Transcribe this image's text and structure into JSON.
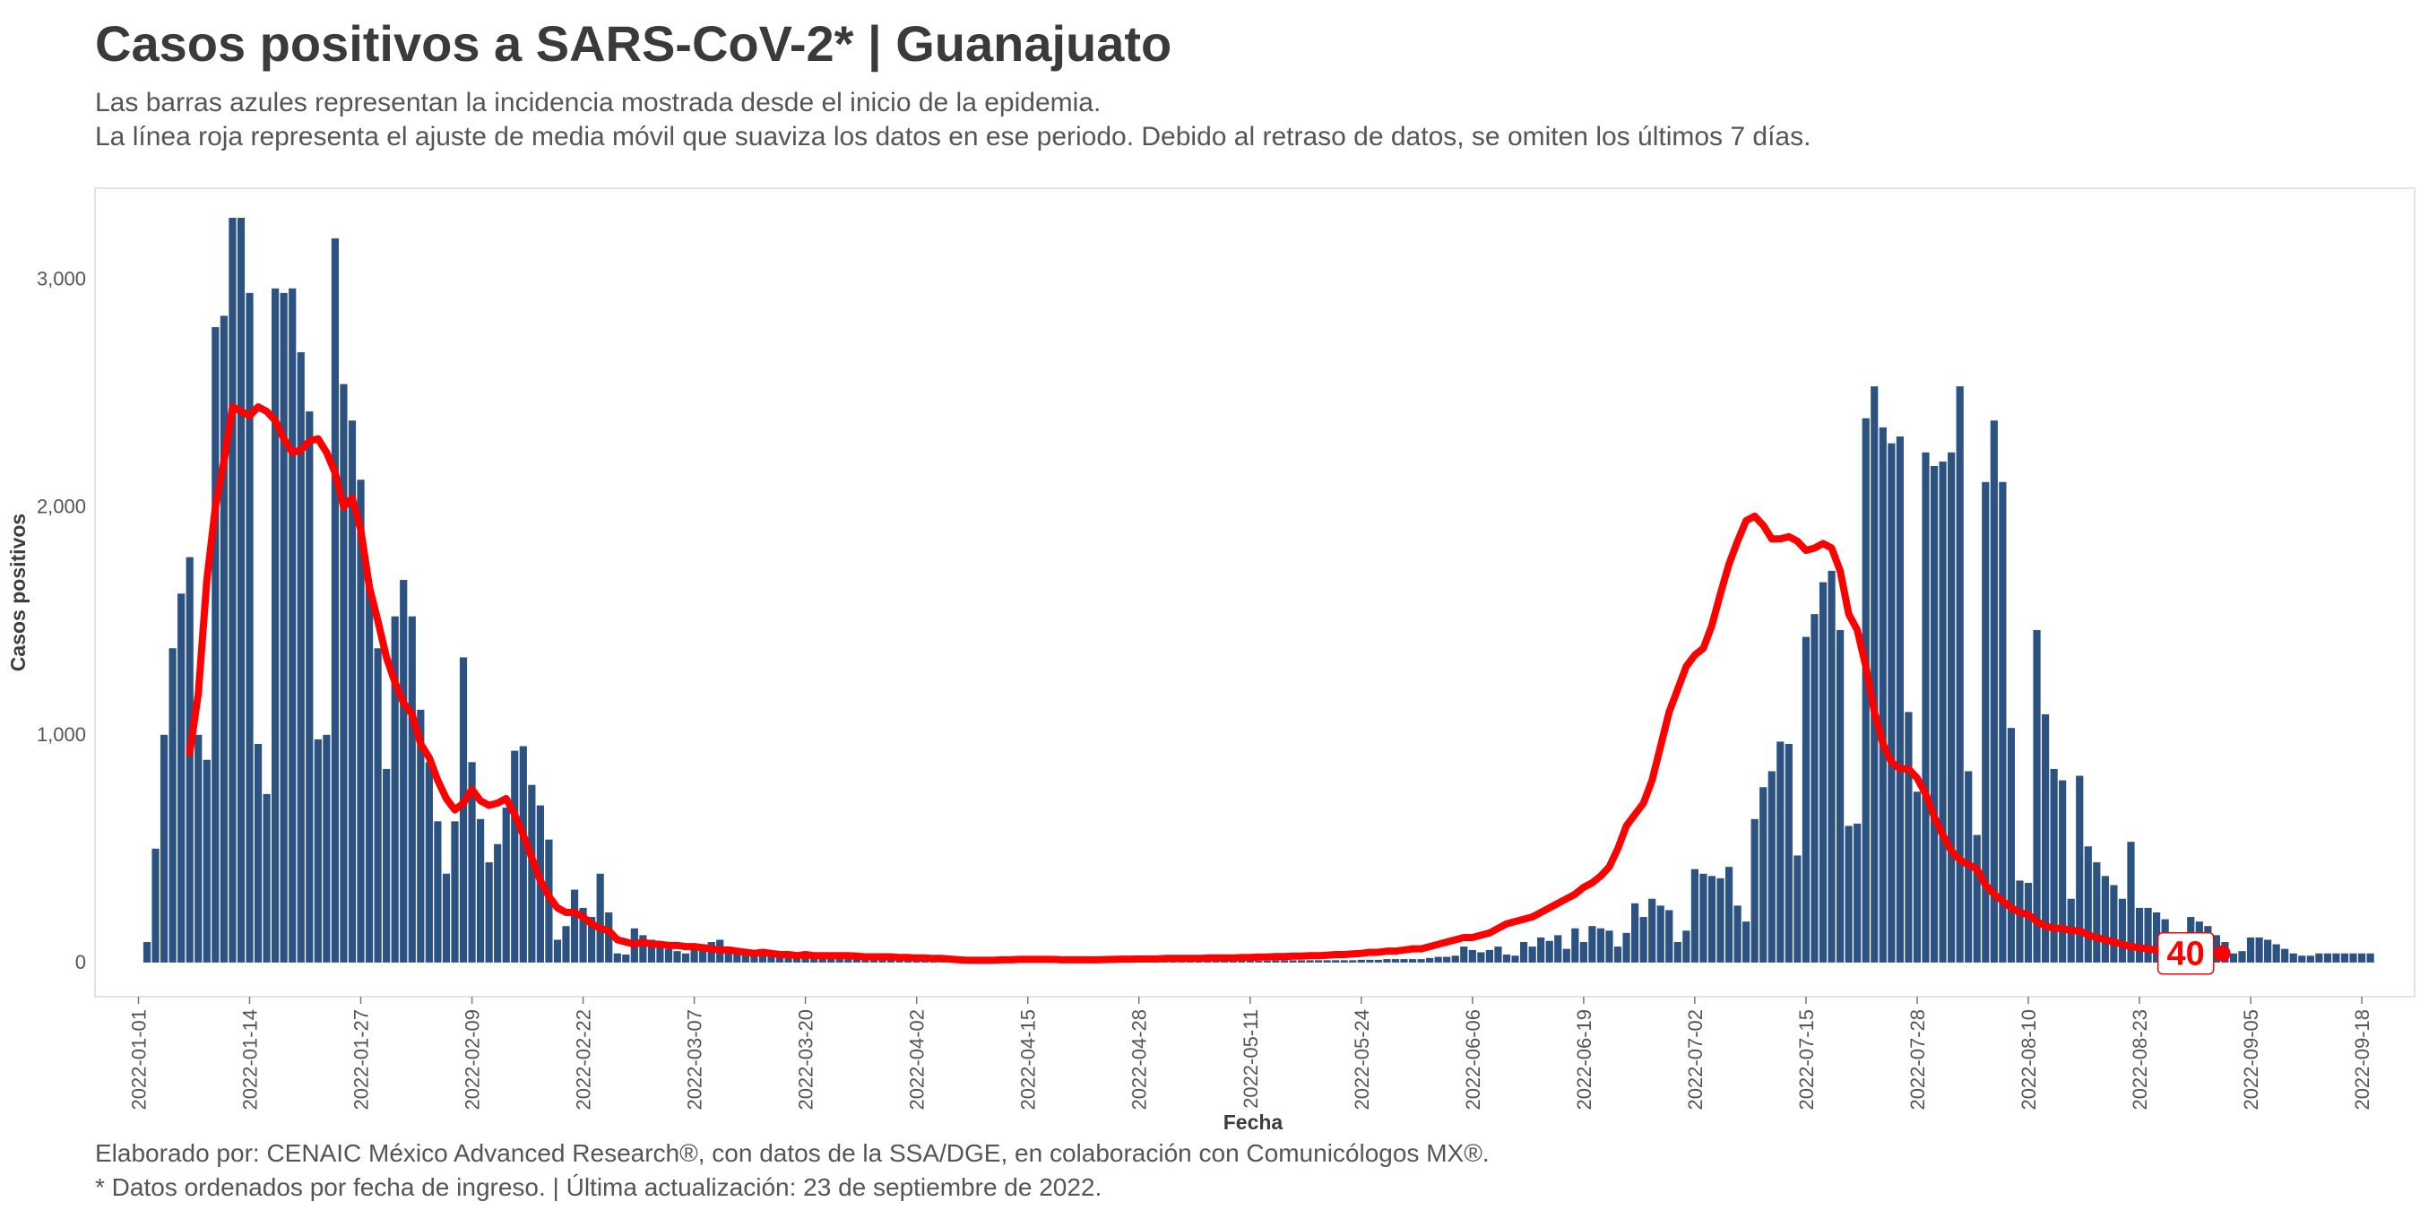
{
  "header": {
    "title": "Casos positivos a SARS-CoV-2* | Guanajuato",
    "subtitle_line1": "Las barras azules representan la incidencia mostrada desde el inicio de la epidemia.",
    "subtitle_line2": "La línea roja representa el ajuste de media móvil que suaviza los datos en ese periodo. Debido al retraso de datos, se omiten los últimos 7 días."
  },
  "footer": {
    "line1": "Elaborado por: CENAIC México Advanced Research®, con datos de la SSA/DGE, en colaboración con Comunicólogos MX®.",
    "line2": "* Datos ordenados por fecha de ingreso. | Última actualización: 23 de septiembre de 2022."
  },
  "colors": {
    "bars": "#2c5282",
    "line": "#ff0000",
    "panel_border": "#e3e3e3"
  },
  "chart_data": {
    "type": "bar",
    "start_date": "2022-01-02",
    "end_date": "2022-09-16",
    "xlabel": "Fecha",
    "ylabel": "Casos positivos",
    "ylim": [
      -150,
      3400
    ],
    "yticks": [
      0,
      1000,
      2000,
      3000
    ],
    "ytick_labels": [
      "0",
      "1,000",
      "2,000",
      "3,000"
    ],
    "xticks": [
      "2022-01-01",
      "2022-01-14",
      "2022-01-27",
      "2022-02-09",
      "2022-02-22",
      "2022-03-07",
      "2022-03-20",
      "2022-04-02",
      "2022-04-15",
      "2022-04-28",
      "2022-05-11",
      "2022-05-24",
      "2022-06-06",
      "2022-06-19",
      "2022-07-02",
      "2022-07-15",
      "2022-07-28",
      "2022-08-10",
      "2022-08-23",
      "2022-09-05",
      "2022-09-18"
    ],
    "grid": false,
    "series": [
      {
        "type": "bar",
        "values": [
          90,
          500,
          1000,
          1380,
          1620,
          1780,
          1000,
          890,
          2790,
          2840,
          3270,
          3270,
          2940,
          960,
          740,
          2960,
          2940,
          2960,
          2680,
          2420,
          980,
          1000,
          3180,
          2540,
          2380,
          2120,
          1660,
          1380,
          850,
          1520,
          1680,
          1520,
          1110,
          880,
          620,
          390,
          620,
          1340,
          880,
          630,
          440,
          520,
          680,
          930,
          950,
          780,
          690,
          540,
          100,
          160,
          320,
          240,
          200,
          390,
          220,
          40,
          35,
          150,
          120,
          100,
          75,
          60,
          50,
          40,
          60,
          80,
          90,
          100,
          70,
          60,
          40,
          35,
          30,
          50,
          45,
          40,
          30,
          25,
          20,
          20,
          20,
          15,
          15,
          15,
          20,
          20,
          15,
          15,
          15,
          15,
          15,
          15,
          15,
          12,
          12,
          12,
          12,
          12,
          12,
          10,
          10,
          10,
          10,
          10,
          10,
          10,
          10,
          10,
          10,
          10,
          10,
          10,
          8,
          8,
          8,
          8,
          8,
          8,
          8,
          8,
          8,
          8,
          8,
          8,
          8,
          8,
          8,
          8,
          8,
          8,
          8,
          8,
          10,
          10,
          10,
          10,
          10,
          10,
          10,
          10,
          10,
          10,
          12,
          12,
          12,
          15,
          15,
          15,
          15,
          15,
          20,
          25,
          25,
          30,
          70,
          55,
          45,
          55,
          70,
          35,
          30,
          90,
          70,
          110,
          95,
          120,
          60,
          150,
          90,
          160,
          150,
          140,
          70,
          130,
          260,
          200,
          280,
          250,
          230,
          90,
          140,
          410,
          390,
          380,
          370,
          420,
          250,
          180,
          630,
          770,
          840,
          970,
          960,
          470,
          1430,
          1530,
          1670,
          1720,
          1460,
          600,
          610,
          2390,
          2530,
          2350,
          2280,
          2310,
          1100,
          750,
          2240,
          2180,
          2200,
          2240,
          2530,
          840,
          560,
          2110,
          2380,
          2110,
          1030,
          360,
          350,
          1460,
          1090,
          850,
          800,
          280,
          820,
          510,
          440,
          380,
          340,
          280,
          530,
          240,
          240,
          220,
          190,
          80,
          40,
          200,
          180,
          160,
          120,
          90,
          40,
          50,
          110,
          110,
          100,
          80,
          60,
          40,
          30,
          30,
          40,
          40,
          40,
          40,
          40,
          40,
          40
        ]
      },
      {
        "type": "line",
        "start_index": 5,
        "values": [
          920,
          1180,
          1680,
          2000,
          2200,
          2440,
          2420,
          2400,
          2440,
          2420,
          2380,
          2300,
          2240,
          2250,
          2290,
          2300,
          2240,
          2150,
          2000,
          2040,
          1900,
          1650,
          1500,
          1340,
          1230,
          1140,
          1090,
          960,
          900,
          800,
          720,
          670,
          700,
          760,
          710,
          690,
          700,
          720,
          650,
          560,
          460,
          360,
          290,
          240,
          220,
          220,
          200,
          170,
          150,
          140,
          100,
          90,
          80,
          90,
          80,
          80,
          75,
          75,
          70,
          70,
          65,
          60,
          55,
          55,
          50,
          45,
          40,
          45,
          40,
          35,
          35,
          30,
          35,
          30,
          30,
          30,
          30,
          30,
          28,
          25,
          25,
          25,
          25,
          22,
          22,
          20,
          20,
          18,
          18,
          15,
          12,
          10,
          10,
          10,
          10,
          12,
          12,
          14,
          14,
          14,
          14,
          14,
          12,
          12,
          12,
          12,
          12,
          13,
          14,
          15,
          15,
          16,
          16,
          16,
          18,
          18,
          18,
          18,
          18,
          20,
          20,
          20,
          20,
          22,
          22,
          24,
          24,
          26,
          26,
          28,
          28,
          30,
          30,
          32,
          35,
          35,
          38,
          40,
          45,
          45,
          50,
          50,
          55,
          60,
          60,
          70,
          80,
          90,
          100,
          110,
          110,
          120,
          130,
          150,
          170,
          180,
          190,
          200,
          220,
          240,
          260,
          280,
          300,
          330,
          350,
          380,
          420,
          500,
          600,
          650,
          700,
          800,
          950,
          1100,
          1200,
          1300,
          1350,
          1380,
          1480,
          1620,
          1750,
          1850,
          1940,
          1960,
          1920,
          1860,
          1860,
          1870,
          1850,
          1810,
          1820,
          1840,
          1820,
          1720,
          1530,
          1460,
          1300,
          1100,
          960,
          880,
          850,
          850,
          810,
          740,
          640,
          560,
          490,
          450,
          430,
          410,
          340,
          300,
          270,
          240,
          220,
          210,
          180,
          160,
          150,
          150,
          140,
          140,
          120,
          110,
          100,
          90,
          80,
          70,
          65,
          60,
          55,
          50,
          45,
          40
        ]
      }
    ],
    "last_value_label": "40"
  }
}
